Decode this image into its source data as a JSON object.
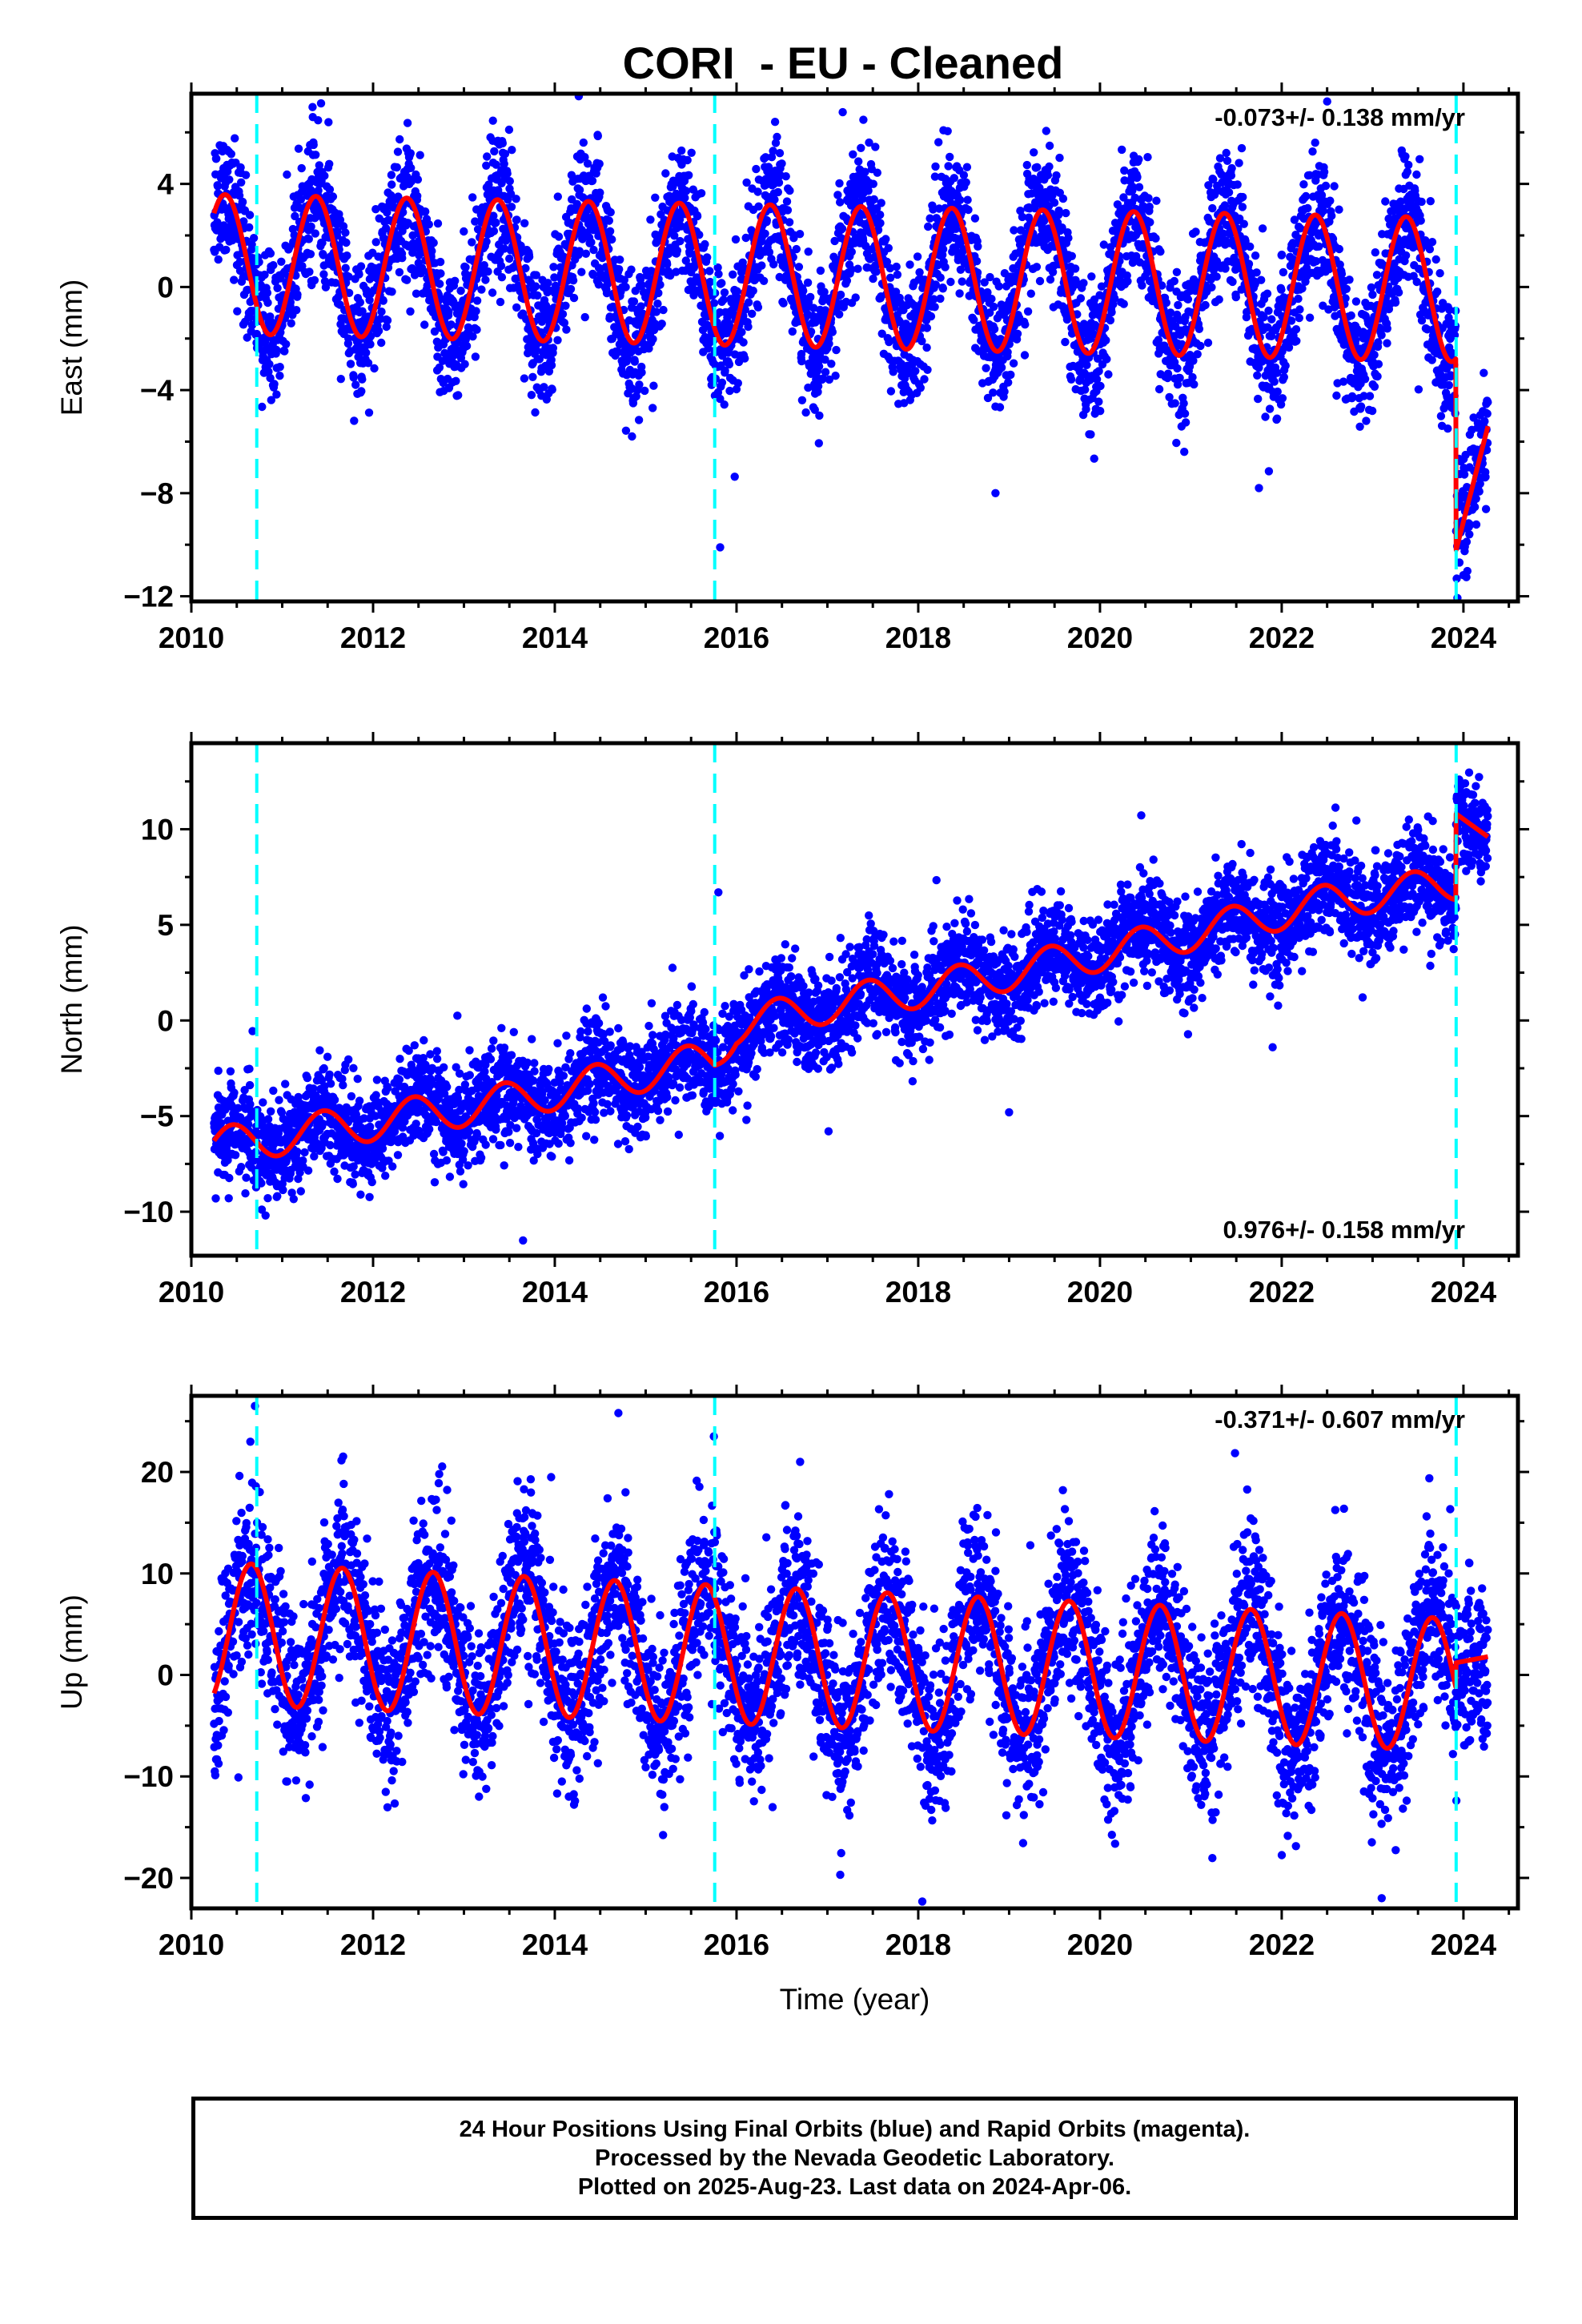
{
  "title": "CORI  - EU - Cleaned",
  "footer": {
    "line1": "24 Hour Positions Using Final Orbits (blue) and Rapid Orbits (magenta).",
    "line2": "Processed by the Nevada Geodetic Laboratory.",
    "line3": "Plotted on 2025-Aug-23. Last data on 2024-Apr-06."
  },
  "colors": {
    "points": "#0000ff",
    "model": "#ff0000",
    "steps": "#00ffff",
    "frame": "#000000"
  },
  "chart_data": [
    {
      "type": "scatter",
      "ylabel": "East (mm)",
      "xlim": [
        2010,
        2024.6
      ],
      "ylim": [
        -12.2,
        7.5
      ],
      "xticks": [
        2010,
        2012,
        2014,
        2016,
        2018,
        2020,
        2022,
        2024
      ],
      "yticks": [
        4,
        0,
        -4,
        -8,
        -12
      ],
      "ytick_labels": [
        "4",
        "0",
        "−4",
        "−8",
        "−12"
      ],
      "rate_text": "-0.073+/- 0.138 mm/yr",
      "rate_position": "top-right",
      "step_epochs": [
        2010.72,
        2015.76,
        2023.92
      ],
      "data_start": 2010.25,
      "data_end": 2024.27,
      "model": {
        "offset": 0.4,
        "trend_per_year": -0.073,
        "seasonal_amplitude": [
          2.7,
          2.8
        ],
        "seasonal_peak_phase": 0.37,
        "scatter": 1.3,
        "post_step": {
          "from": 2023.92,
          "start": -10.2,
          "end": -5.4,
          "scatter": 1.2
        }
      },
      "outliers": [
        [
          2014.85,
          -5.8
        ],
        [
          2015.82,
          -10.1
        ],
        [
          2018.85,
          -8.0
        ],
        [
          2021.75,
          -7.8
        ],
        [
          2022.5,
          7.2
        ]
      ]
    },
    {
      "type": "scatter",
      "ylabel": "North (mm)",
      "xlim": [
        2010,
        2024.6
      ],
      "ylim": [
        -12.3,
        14.5
      ],
      "xticks": [
        2010,
        2012,
        2014,
        2016,
        2018,
        2020,
        2022,
        2024
      ],
      "yticks": [
        10,
        5,
        0,
        -5,
        -10
      ],
      "ytick_labels": [
        "10",
        "5",
        "0",
        "−5",
        "−10"
      ],
      "rate_text": "0.976+/- 0.158 mm/yr",
      "rate_position": "bottom-right",
      "step_epochs": [
        2010.72,
        2015.76,
        2023.92
      ],
      "data_start": 2010.25,
      "data_end": 2024.27,
      "model": {
        "anchors": [
          [
            2010.25,
            -6.6
          ],
          [
            2013.5,
            -4.2
          ],
          [
            2015.76,
            -2.0
          ],
          [
            2016.0,
            -0.3
          ],
          [
            2017.0,
            0.8
          ],
          [
            2018.5,
            2.0
          ],
          [
            2020.5,
            4.0
          ],
          [
            2022.5,
            6.2
          ],
          [
            2023.92,
            7.2
          ]
        ],
        "seasonal_amplitude": [
          1.0,
          0.9
        ],
        "seasonal_peak_phase": 0.45,
        "scatter": 1.3,
        "post_step": {
          "from": 2023.92,
          "start": 10.8,
          "end": 9.6,
          "scatter": 1.2
        }
      },
      "outliers": [
        [
          2013.65,
          -11.5
        ],
        [
          2015.8,
          6.7
        ],
        [
          2019.0,
          -4.8
        ],
        [
          2021.9,
          -1.4
        ]
      ]
    },
    {
      "type": "scatter",
      "ylabel": "Up (mm)",
      "xlabel": "Time (year)",
      "xlim": [
        2010,
        2024.6
      ],
      "ylim": [
        -23,
        27.5
      ],
      "xticks": [
        2010,
        2012,
        2014,
        2016,
        2018,
        2020,
        2022,
        2024
      ],
      "yticks": [
        20,
        10,
        0,
        -10,
        -20
      ],
      "ytick_labels": [
        "20",
        "10",
        "0",
        "−10",
        "−20"
      ],
      "rate_text": "-0.371+/- 0.607 mm/yr",
      "rate_position": "top-right",
      "step_epochs": [
        2010.72,
        2015.76,
        2023.92
      ],
      "data_start": 2010.25,
      "data_end": 2024.27,
      "model": {
        "offset": 1.6,
        "trend_per_year": -0.371,
        "seasonal_amplitude": [
          7.0,
          6.5
        ],
        "seasonal_peak_phase": 0.66,
        "scatter": 4.2,
        "post_step": {
          "from": 2023.92,
          "start": 1.2,
          "end": 1.8,
          "scatter": 4.0
        }
      },
      "outliers": [
        [
          2010.7,
          26.5
        ],
        [
          2014.7,
          25.8
        ],
        [
          2015.75,
          23.5
        ],
        [
          2023.1,
          -22.0
        ],
        [
          2016.7,
          21.0
        ]
      ]
    }
  ]
}
